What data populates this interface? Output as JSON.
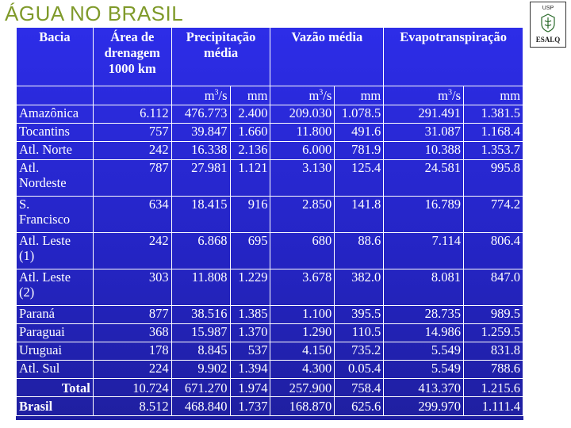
{
  "title": "ÁGUA NO BRASIL",
  "logo": {
    "top_text": "USP",
    "bottom_text": "ESALQ"
  },
  "headers": {
    "bacia": "Bacia",
    "area": [
      "Área de",
      "drenagem",
      "1000 km"
    ],
    "precip": [
      "Precipitação",
      "média"
    ],
    "vazao": "Vazão média",
    "evapo": "Evapotranspiração"
  },
  "units": [
    "m3/s",
    "mm",
    "m3/s",
    "mm",
    "m3/s",
    "mm"
  ],
  "rows": [
    {
      "name": [
        "Amazônica"
      ],
      "area": "6.112",
      "p_m3s": "476.773",
      "p_mm": "2.400",
      "v_m3s": "209.030",
      "v_mm": "1.078.5",
      "e_m3s": "291.491",
      "e_mm": "1.381.5"
    },
    {
      "name": [
        "Tocantins"
      ],
      "area": "757",
      "p_m3s": "39.847",
      "p_mm": "1.660",
      "v_m3s": "11.800",
      "v_mm": "491.6",
      "e_m3s": "31.087",
      "e_mm": "1.168.4"
    },
    {
      "name": [
        "Atl. Norte"
      ],
      "area": "242",
      "p_m3s": "16.338",
      "p_mm": "2.136",
      "v_m3s": "6.000",
      "v_mm": "781.9",
      "e_m3s": "10.388",
      "e_mm": "1.353.7"
    },
    {
      "name": [
        "Atl.",
        "Nordeste"
      ],
      "area": "787",
      "p_m3s": "27.981",
      "p_mm": "1.121",
      "v_m3s": "3.130",
      "v_mm": "125.4",
      "e_m3s": "24.581",
      "e_mm": "995.8"
    },
    {
      "name": [
        "S.",
        "Francisco"
      ],
      "area": "634",
      "p_m3s": "18.415",
      "p_mm": "916",
      "v_m3s": "2.850",
      "v_mm": "141.8",
      "e_m3s": "16.789",
      "e_mm": "774.2"
    },
    {
      "name": [
        "Atl. Leste",
        "(1)"
      ],
      "area": "242",
      "p_m3s": "6.868",
      "p_mm": "695",
      "v_m3s": "680",
      "v_mm": "88.6",
      "e_m3s": "7.114",
      "e_mm": "806.4"
    },
    {
      "name": [
        "Atl. Leste",
        "(2)"
      ],
      "area": "303",
      "p_m3s": "11.808",
      "p_mm": "1.229",
      "v_m3s": "3.678",
      "v_mm": "382.0",
      "e_m3s": "8.081",
      "e_mm": "847.0"
    },
    {
      "name": [
        "Paraná"
      ],
      "area": "877",
      "p_m3s": "38.516",
      "p_mm": "1.385",
      "v_m3s": "1.100",
      "v_mm": "395.5",
      "e_m3s": "28.735",
      "e_mm": "989.5"
    },
    {
      "name": [
        "Paraguai"
      ],
      "area": "368",
      "p_m3s": "15.987",
      "p_mm": "1.370",
      "v_m3s": "1.290",
      "v_mm": "110.5",
      "e_m3s": "14.986",
      "e_mm": "1.259.5"
    },
    {
      "name": [
        "Uruguai"
      ],
      "area": "178",
      "p_m3s": "8.845",
      "p_mm": "537",
      "v_m3s": "4.150",
      "v_mm": "735.2",
      "e_m3s": "5.549",
      "e_mm": "831.8"
    },
    {
      "name": [
        "Atl. Sul"
      ],
      "area": "224",
      "p_m3s": "9.902",
      "p_mm": "1.394",
      "v_m3s": "4.300",
      "v_mm": "0.05.4",
      "e_m3s": "5.549",
      "e_mm": "788.6"
    }
  ],
  "total": {
    "label": "Total",
    "area": "10.724",
    "p_m3s": "671.270",
    "p_mm": "1.974",
    "v_m3s": "257.900",
    "v_mm": "758.4",
    "e_m3s": "413.370",
    "e_mm": "1.215.6"
  },
  "brasil": {
    "label": "Brasil",
    "area": "8.512",
    "p_m3s": "468.840",
    "p_mm": "1.737",
    "v_m3s": "168.870",
    "v_mm": "625.6",
    "e_m3s": "299.970",
    "e_mm": "1.111.4"
  }
}
